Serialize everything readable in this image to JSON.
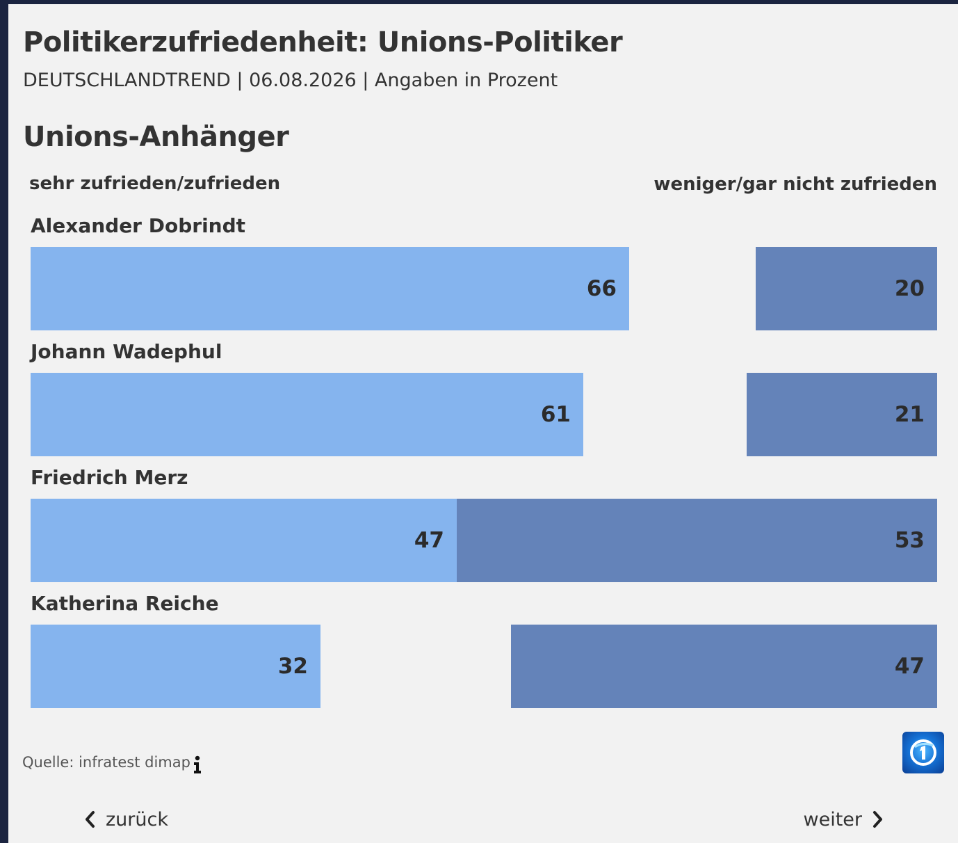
{
  "header": {
    "title": "Politikerzufriedenheit: Unions-Politiker",
    "subtitle": "DEUTSCHLANDTREND | 06.08.2026 | Angaben in Prozent"
  },
  "section_title": "Unions-Anhänger",
  "chart_data": {
    "type": "bar",
    "orientation": "horizontal",
    "scale_max": 100,
    "categories": [
      "Alexander Dobrindt",
      "Johann Wadephul",
      "Friedrich Merz",
      "Katherina Reiche"
    ],
    "series": [
      {
        "name": "sehr zufrieden/zufrieden",
        "color": "#85b4ee",
        "align": "left",
        "values": [
          66,
          61,
          47,
          32
        ]
      },
      {
        "name": "weniger/gar nicht zufrieden",
        "color": "#6483b9",
        "align": "right",
        "values": [
          20,
          21,
          53,
          47
        ]
      }
    ],
    "legend": "top"
  },
  "footer": {
    "source": "Quelle: infratest dimap",
    "info_icon": "info-icon",
    "logo_icon": "tagesschau-logo-icon"
  },
  "nav": {
    "back_label": "zurück",
    "next_label": "weiter"
  }
}
